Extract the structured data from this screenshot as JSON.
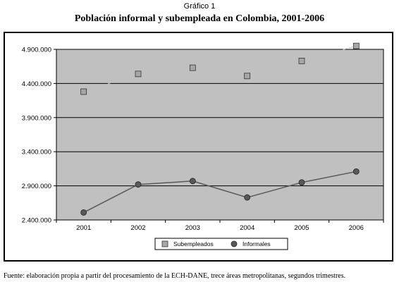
{
  "header": {
    "caption": "Gráfico 1",
    "title": "Población informal y subempleada en Colombia, 2001-2006"
  },
  "footer": {
    "source": "Fuente: elaboración propia a partir del procesamiento de la ECH-DANE, trece áreas metropolitanas, segundos trimestres."
  },
  "chart_data": {
    "type": "line",
    "title": "Población informal y subempleada en Colombia, 2001-2006",
    "xlabel": "",
    "ylabel": "",
    "categories": [
      "2001",
      "2002",
      "2003",
      "2004",
      "2005",
      "2006"
    ],
    "ylim": [
      2400000,
      4900000
    ],
    "yticks": [
      2400000,
      2900000,
      3400000,
      3900000,
      4400000,
      4900000
    ],
    "ytick_labels": [
      "2.400.000",
      "2.900.000",
      "3.400.000",
      "3.900.000",
      "4.400.000",
      "4.900.000"
    ],
    "grid": true,
    "legend_position": "bottom",
    "plot_background": "#c0c0c0",
    "series": [
      {
        "name": "Subempleados",
        "marker": "square",
        "line_style": "dashed",
        "color": "#a6a6a6",
        "line_color": "#bfbfbf",
        "values": [
          4280000,
          4540000,
          4630000,
          4510000,
          4730000,
          4950000
        ]
      },
      {
        "name": "Informales",
        "marker": "circle",
        "line_style": "solid",
        "color": "#595959",
        "line_color": "#595959",
        "values": [
          2510000,
          2920000,
          2970000,
          2730000,
          2950000,
          3110000
        ]
      }
    ]
  }
}
